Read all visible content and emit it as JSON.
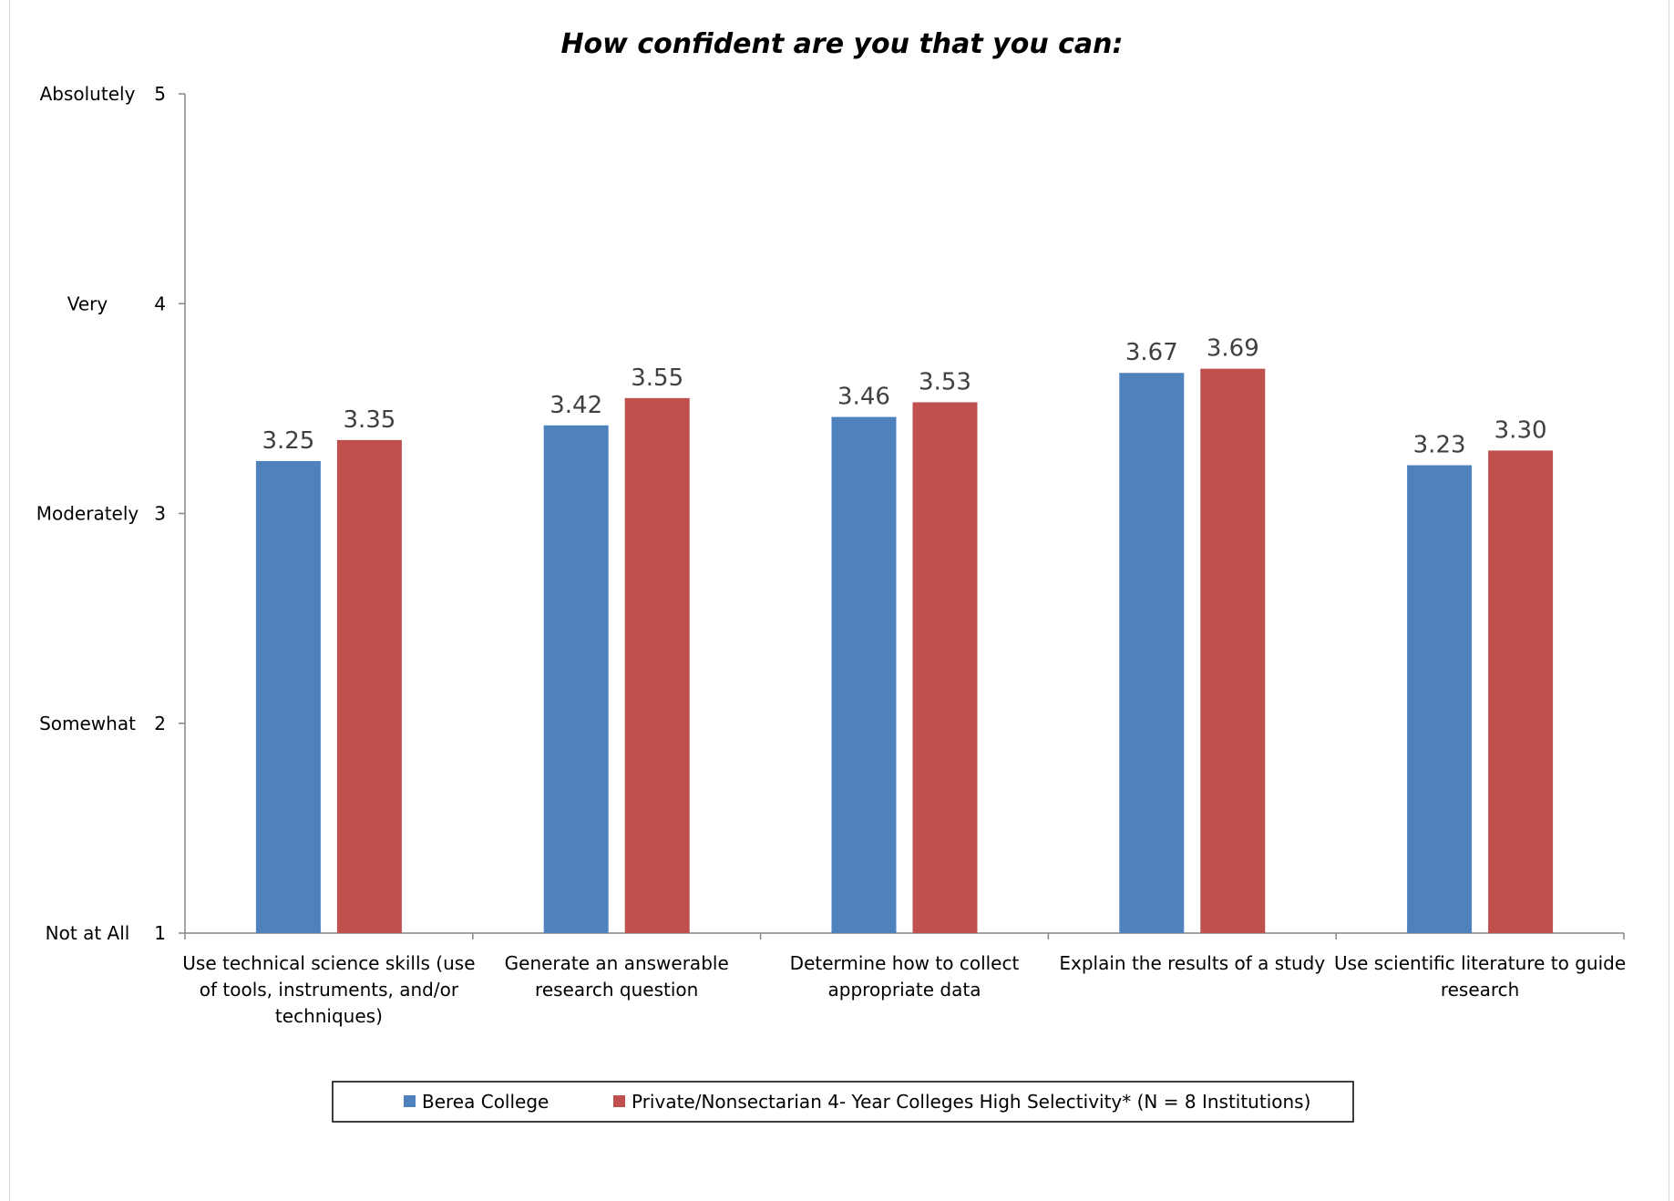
{
  "chart_data": {
    "type": "bar",
    "title": "How confident are you that you can:",
    "xlabel": "",
    "ylabel": "",
    "ylim": [
      1,
      5
    ],
    "yticks": [
      1,
      2,
      3,
      4,
      5
    ],
    "ytick_scale_labels": [
      "Not at All",
      "Somewhat",
      "Moderately",
      "Very",
      "Absolutely"
    ],
    "categories": [
      [
        "Use technical science skills (use",
        "of tools, instruments, and/or",
        "techniques)"
      ],
      [
        "Generate an answerable",
        "research question"
      ],
      [
        "Determine how to collect",
        "appropriate data"
      ],
      [
        "Explain the results of a study"
      ],
      [
        "Use scientific literature to guide",
        "research"
      ]
    ],
    "series": [
      {
        "name": "Berea College",
        "color": "#4F81BD",
        "values": [
          3.25,
          3.42,
          3.46,
          3.67,
          3.23
        ],
        "labels": [
          "3.25",
          "3.42",
          "3.46",
          "3.67",
          "3.23"
        ]
      },
      {
        "name": "Private/Nonsectarian 4- Year Colleges High Selectivity* (N = 8 Institutions)",
        "color": "#C0504D",
        "values": [
          3.35,
          3.55,
          3.53,
          3.69,
          3.3
        ],
        "labels": [
          "3.35",
          "3.55",
          "3.53",
          "3.69",
          "3.30"
        ]
      }
    ],
    "grid": false,
    "legend_position": "bottom"
  }
}
